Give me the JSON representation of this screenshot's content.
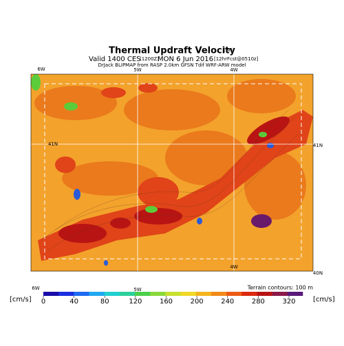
{
  "header": {
    "title": "Thermal Updraft Velocity",
    "title_unit": "(W*)",
    "valid": "Valid 1400 CES",
    "init": "(1200Z)",
    "date": "MON 6 Jun 2016",
    "forecast": "[12hrFcst@0510z]",
    "credit": "DrJack BLIPMAP from RASP 2.0km GFSN Tdif WRF-ARW model"
  },
  "map": {
    "labels": [
      {
        "text": "6W",
        "pos": "top-left"
      },
      {
        "text": "5W",
        "pos": "top"
      },
      {
        "text": "4W",
        "pos": "top-right"
      },
      {
        "text": "41N",
        "pos": "left"
      },
      {
        "text": "41N",
        "pos": "right"
      },
      {
        "text": "4W",
        "pos": "inner-bottom"
      },
      {
        "text": "40N",
        "pos": "bottom-right"
      },
      {
        "text": "6W",
        "pos": "bottom-left"
      },
      {
        "text": "5W",
        "pos": "bottom"
      }
    ],
    "terrain_note": "Terrain contours: 100 m"
  },
  "colorbar": {
    "unit_left": "[cm/s]",
    "unit_right": "[cm/s]",
    "ticks": [
      0,
      40,
      80,
      120,
      160,
      200,
      240,
      280,
      320
    ]
  }
}
